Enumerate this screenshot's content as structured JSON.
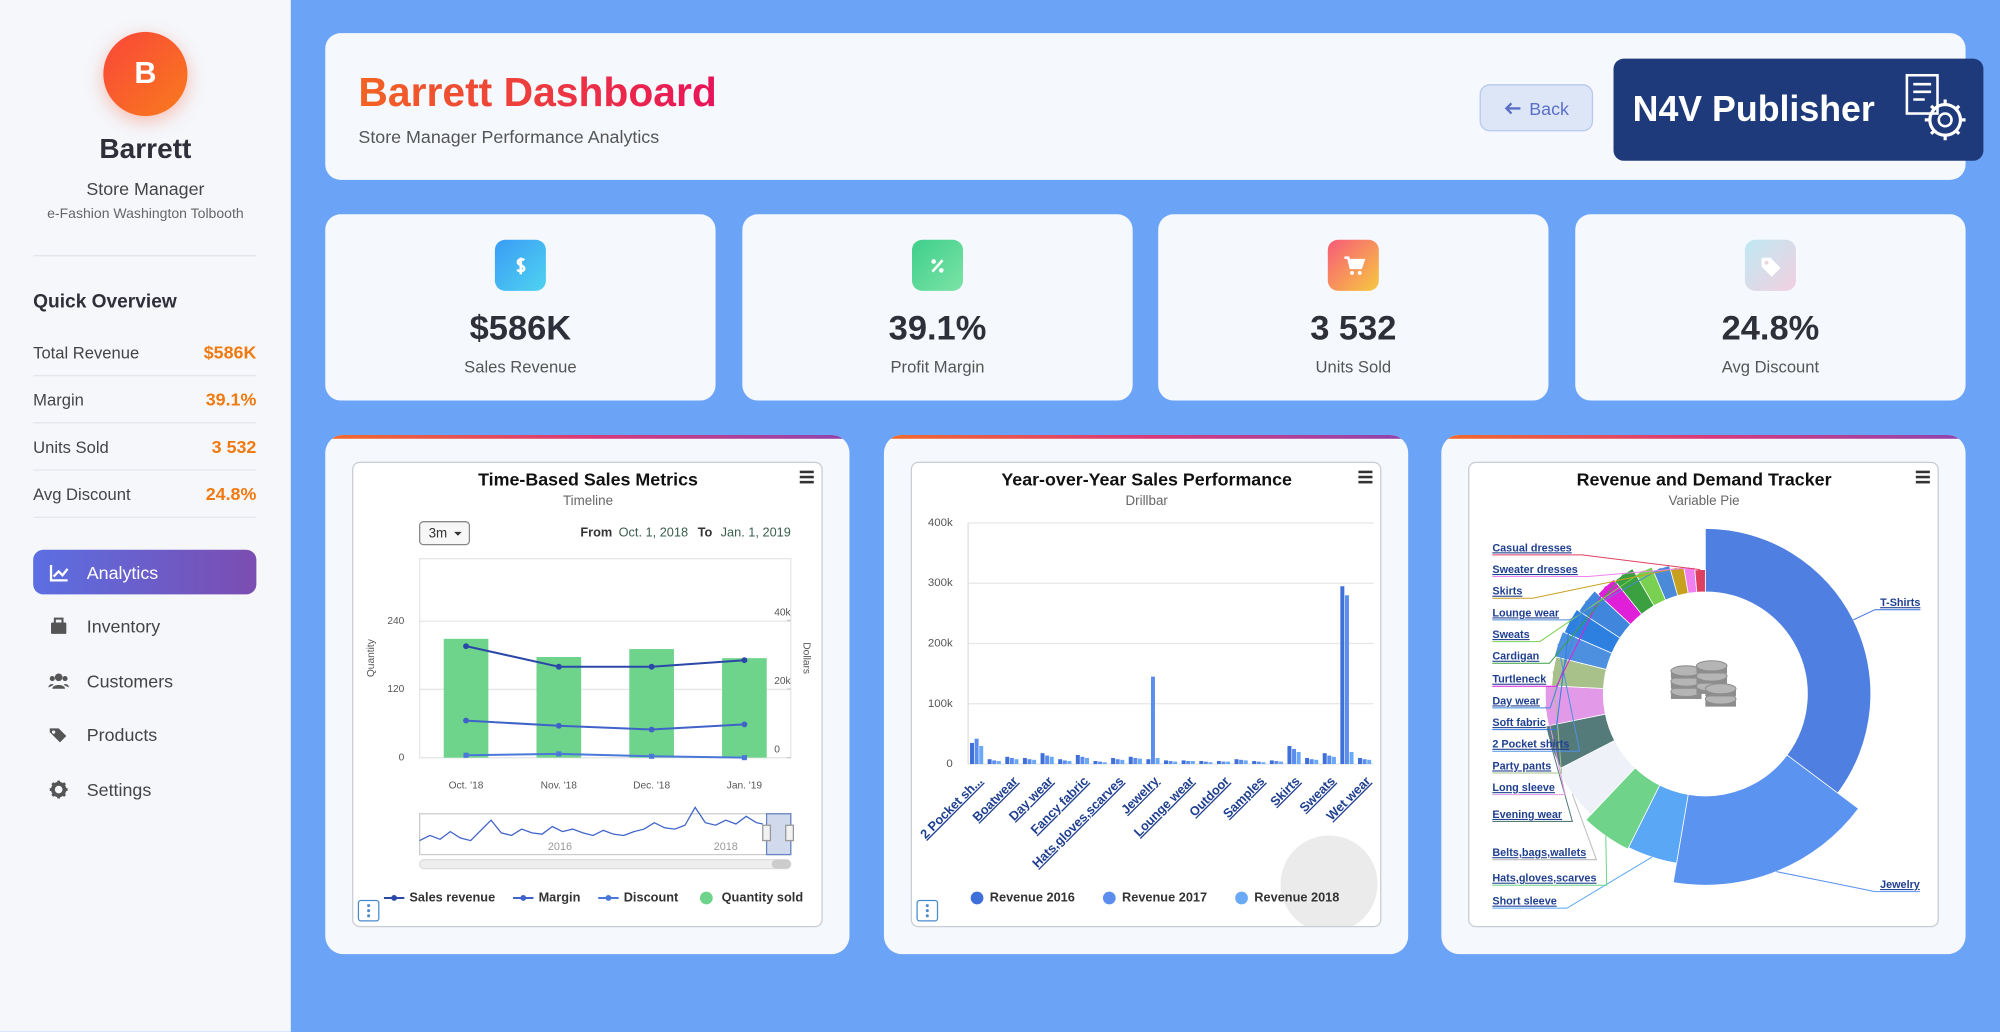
{
  "sidebar": {
    "avatar": "B",
    "name": "Barrett",
    "role": "Store Manager",
    "store": "e-Fashion Washington Tolbooth",
    "quick_overview": {
      "title": "Quick Overview",
      "items": [
        {
          "label": "Total Revenue",
          "value": "$586K"
        },
        {
          "label": "Margin",
          "value": "39.1%"
        },
        {
          "label": "Units Sold",
          "value": "3 532"
        },
        {
          "label": "Avg Discount",
          "value": "24.8%"
        }
      ]
    },
    "nav": [
      {
        "label": "Analytics",
        "active": true
      },
      {
        "label": "Inventory",
        "active": false
      },
      {
        "label": "Customers",
        "active": false
      },
      {
        "label": "Products",
        "active": false
      },
      {
        "label": "Settings",
        "active": false
      }
    ]
  },
  "header": {
    "title": "Barrett Dashboard",
    "subtitle": "Store Manager Performance Analytics",
    "back": "Back",
    "watermark": "N4V Publisher"
  },
  "kpis": [
    {
      "value": "$586K",
      "label": "Sales Revenue"
    },
    {
      "value": "39.1%",
      "label": "Profit Margin"
    },
    {
      "value": "3 532",
      "label": "Units Sold"
    },
    {
      "value": "24.8%",
      "label": "Avg Discount"
    }
  ],
  "chart_data": [
    {
      "type": "combo",
      "title": "Time-Based Sales Metrics",
      "subtitle": "Timeline",
      "range_button": "3m",
      "from_label": "From",
      "from": "Oct. 1, 2018",
      "to_label": "To",
      "to": "Jan. 1, 2019",
      "categories": [
        "Oct. '18",
        "Nov. '18",
        "Dec. '18",
        "Jan. '19"
      ],
      "ylabel": "Quantity",
      "y2label": "Dollars",
      "ylim": [
        0,
        350
      ],
      "yticks": [
        0,
        120,
        240
      ],
      "y2lim": [
        0,
        58000
      ],
      "y2ticks": [
        0,
        {
          "value": 20000,
          "label": "20k"
        },
        {
          "value": 40000,
          "label": "40k"
        }
      ],
      "grid": true,
      "series": [
        {
          "name": "Sales revenue",
          "color": "#2b48a8",
          "type": "line",
          "axis": "y2",
          "values": [
            32500,
            26500,
            26500,
            28400
          ]
        },
        {
          "name": "Margin",
          "color": "#3f63c8",
          "type": "line",
          "axis": "y2",
          "values": [
            10800,
            9300,
            8200,
            9700
          ]
        },
        {
          "name": "Discount",
          "color": "#4a78d8",
          "type": "line",
          "axis": "y2",
          "values": [
            700,
            1100,
            400,
            0
          ]
        },
        {
          "name": "Quantity sold",
          "color": "#6ed38b",
          "type": "bar",
          "values": [
            209,
            177,
            191,
            175
          ]
        }
      ],
      "navigator_labels": [
        "2016",
        "2018"
      ]
    },
    {
      "type": "bar",
      "title": "Year-over-Year Sales Performance",
      "subtitle": "Drillbar",
      "categories": [
        "2 Pocket sh...",
        null,
        "Boatwear",
        null,
        "Day wear",
        null,
        "Fancy fabric",
        null,
        "Hats,gloves,scarves",
        null,
        "Jewelry",
        null,
        "Lounge wear",
        null,
        "Outdoor",
        null,
        "Samples",
        null,
        "Skirts",
        null,
        "Sweats",
        null,
        "Wet wear"
      ],
      "ylim": [
        0,
        400000
      ],
      "yticks": [
        0,
        {
          "value": 100000,
          "label": "100k"
        },
        {
          "value": 200000,
          "label": "200k"
        },
        {
          "value": 300000,
          "label": "300k"
        },
        {
          "value": 400000,
          "label": "400k"
        }
      ],
      "grid": true,
      "series": [
        {
          "name": "Revenue 2016",
          "color": "#3f6fd8",
          "values": [
            35000,
            8000,
            12000,
            10000,
            18000,
            8000,
            15000,
            5000,
            10000,
            12000,
            8000,
            6000,
            6000,
            5000,
            5000,
            8000,
            5000,
            6000,
            30000,
            10000,
            18000,
            295000,
            10000
          ]
        },
        {
          "name": "Revenue 2017",
          "color": "#5b8def",
          "values": [
            42000,
            6000,
            10000,
            8000,
            14000,
            6000,
            12000,
            4000,
            8000,
            10000,
            145000,
            5000,
            5000,
            4000,
            4000,
            7000,
            4000,
            5000,
            25000,
            8000,
            14000,
            280000,
            8000
          ]
        },
        {
          "name": "Revenue 2018",
          "color": "#6aa9f5",
          "values": [
            30000,
            5000,
            8000,
            7000,
            12000,
            5000,
            10000,
            3000,
            7000,
            9000,
            10000,
            4000,
            5000,
            3000,
            4000,
            6000,
            3000,
            4000,
            20000,
            7000,
            12000,
            20000,
            7000
          ]
        }
      ]
    },
    {
      "type": "pie",
      "title": "Revenue and Demand Tracker",
      "subtitle": "Variable Pie",
      "categories": [
        "T-Shirts",
        "Jewelry",
        "Short sleeve",
        "Hats,gloves,scarves",
        "Belts,bags,wallets",
        "Evening wear",
        "Long sleeve",
        "Party pants",
        "2 Pocket shirts",
        "Soft fabric",
        "Day wear",
        "Turtleneck",
        "Cardigan",
        "Sweats",
        "Lounge wear",
        "Skirts",
        "Sweater dresses",
        "Casual dresses"
      ],
      "values": [
        105,
        52,
        14,
        14,
        16,
        13,
        12,
        9,
        8,
        8,
        8,
        7,
        7,
        6,
        6,
        5,
        4,
        4
      ],
      "z": [
        71,
        100,
        78,
        80,
        72,
        68,
        65,
        58,
        60,
        58,
        55,
        50,
        48,
        40,
        35,
        30,
        28,
        25
      ],
      "colors": [
        "#4f7fe0",
        "#5b93f0",
        "#5aa8f5",
        "#6fd48a",
        "#eef2f8",
        "#557a7a",
        "#e29ae8",
        "#a8c08a",
        "#4e90e0",
        "#2d7fe0",
        "#3f86dc",
        "#e020d8",
        "#3aa040",
        "#7ad050",
        "#4a8ad8",
        "#c8a020",
        "#f080f0",
        "#e04060"
      ]
    }
  ]
}
